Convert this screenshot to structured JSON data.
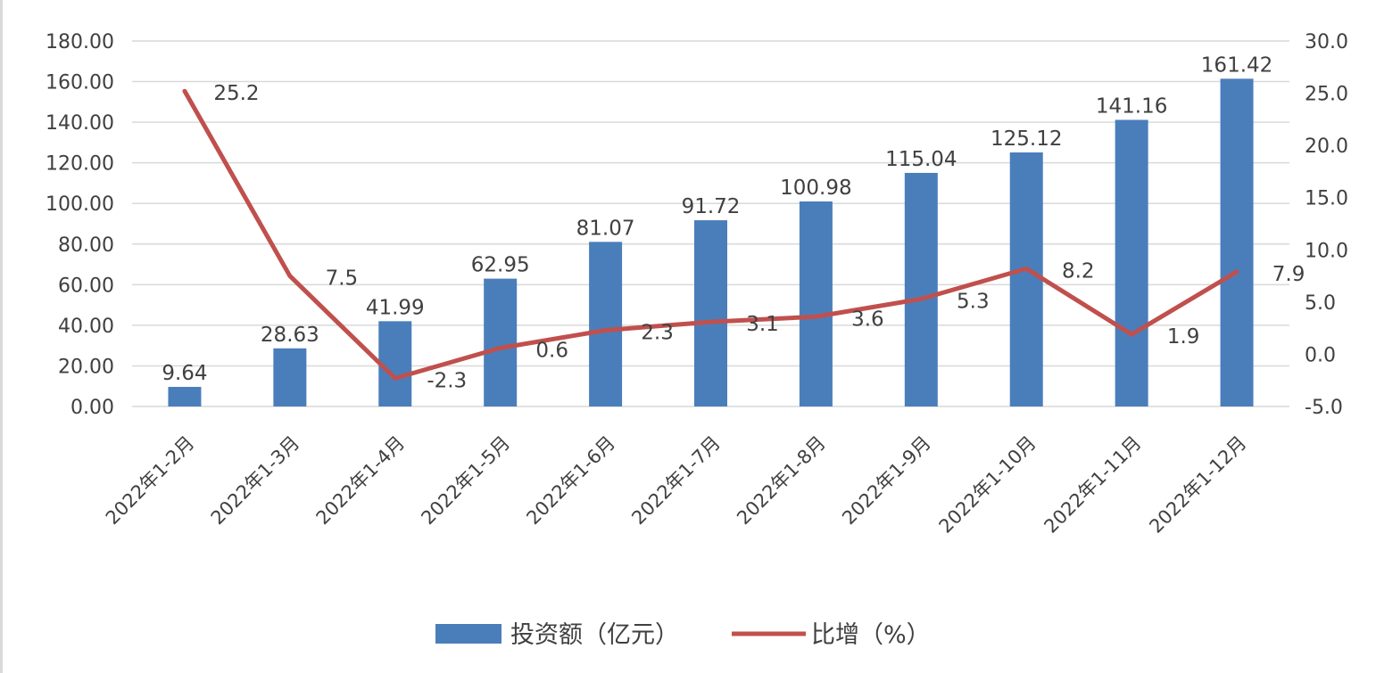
{
  "chart_data": {
    "type": "bar",
    "categories": [
      "2022年1-2月",
      "2022年1-3月",
      "2022年1-4月",
      "2022年1-5月",
      "2022年1-6月",
      "2022年1-7月",
      "2022年1-8月",
      "2022年1-9月",
      "2022年1-10月",
      "2022年1-11月",
      "2022年1-12月"
    ],
    "series": [
      {
        "name": "投资额（亿元）",
        "type": "bar",
        "axis": "left",
        "values": [
          9.64,
          28.63,
          41.99,
          62.95,
          81.07,
          91.72,
          100.98,
          115.04,
          125.12,
          141.16,
          161.42
        ],
        "labels": [
          "9.64",
          "28.63",
          "41.99",
          "62.95",
          "81.07",
          "91.72",
          "100.98",
          "115.04",
          "125.12",
          "141.16",
          "161.42"
        ]
      },
      {
        "name": "比增（%）",
        "type": "line",
        "axis": "right",
        "values": [
          25.2,
          7.5,
          -2.3,
          0.6,
          2.3,
          3.1,
          3.6,
          5.3,
          8.2,
          1.9,
          7.9
        ],
        "labels": [
          "25.2",
          "7.5",
          "-2.3",
          "0.6",
          "2.3",
          "3.1",
          "3.6",
          "5.3",
          "8.2",
          "1.9",
          "7.9"
        ]
      }
    ],
    "ylim": [
      0,
      180
    ],
    "y2lim": [
      -5,
      30
    ],
    "yticks": [
      "0.00",
      "20.00",
      "40.00",
      "60.00",
      "80.00",
      "100.00",
      "120.00",
      "140.00",
      "160.00",
      "180.00"
    ],
    "y2ticks": [
      "-5.0",
      "0.0",
      "5.0",
      "10.0",
      "15.0",
      "20.0",
      "25.0",
      "30.0"
    ],
    "grid": true,
    "legend_position": "bottom",
    "colors": {
      "bar": "#4a7ebb",
      "line": "#c0504d",
      "grid": "#d9d9d9",
      "text": "#404040"
    }
  }
}
